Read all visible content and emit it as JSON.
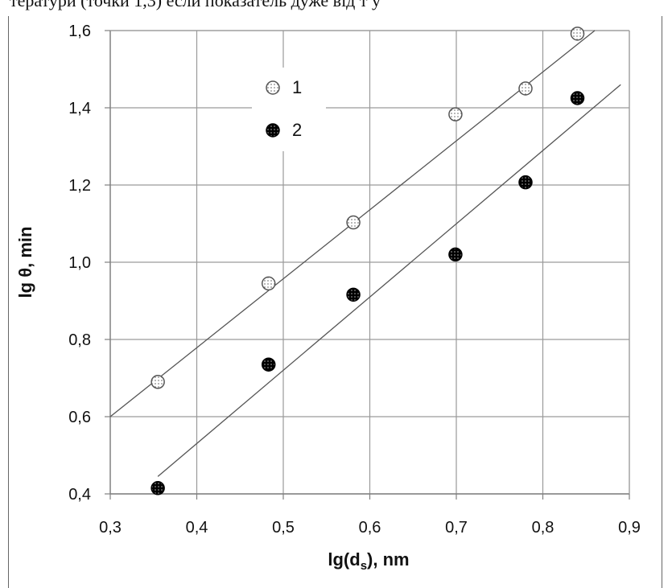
{
  "header_fragment": "тератури (точки 1,3) если показатель дуже від т у",
  "chart_data": {
    "type": "scatter",
    "title": "",
    "xlabel": "lg(d",
    "xlabel_sub": "s",
    "xlabel_suffix": "), nm",
    "ylabel": "lg θ, min",
    "xlim": [
      0.3,
      0.9
    ],
    "ylim": [
      0.4,
      1.6
    ],
    "xticks": [
      "0,3",
      "0,4",
      "0,5",
      "0,6",
      "0,7",
      "0,8",
      "0,9"
    ],
    "yticks": [
      "0,4",
      "0,6",
      "0,8",
      "1,0",
      "1,2",
      "1,4",
      "1,6"
    ],
    "grid": true,
    "legend_position": "upper-left-inside",
    "series": [
      {
        "name": "1",
        "marker": "dotted-open-circle",
        "x": [
          0.355,
          0.483,
          0.581,
          0.699,
          0.78,
          0.84
        ],
        "y": [
          0.69,
          0.945,
          1.103,
          1.383,
          1.45,
          1.592
        ]
      },
      {
        "name": "2",
        "marker": "dark-dotted-circle",
        "x": [
          0.355,
          0.483,
          0.581,
          0.699,
          0.78,
          0.84
        ],
        "y": [
          0.415,
          0.735,
          0.916,
          1.02,
          1.207,
          1.425
        ]
      }
    ],
    "fit_lines": [
      {
        "series": "1",
        "x": [
          0.3,
          0.86
        ],
        "y": [
          0.6,
          1.6
        ]
      },
      {
        "series": "2",
        "x": [
          0.355,
          0.89
        ],
        "y": [
          0.445,
          1.46
        ]
      }
    ]
  }
}
